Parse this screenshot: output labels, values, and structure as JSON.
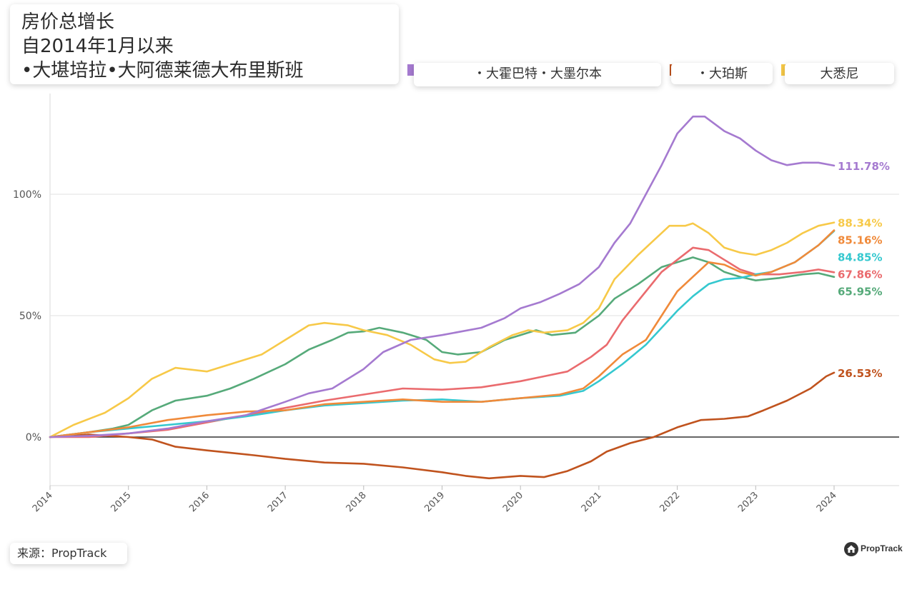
{
  "title_block": {
    "line1": "房价总增长",
    "line2": "自2014年1月以来",
    "line3": "•大堪培拉•大阿德莱德大布里斯班"
  },
  "legend": {
    "box_a": "・大霍巴特・大墨尔本",
    "box_b": "・大珀斯",
    "box_c": "大悉尼"
  },
  "source": "来源：PropTrack",
  "logo": {
    "name": "PropTrack",
    "icon": "house-icon"
  },
  "colors": {
    "purple": "#a57ad0",
    "yellow": "#f7c948",
    "orange": "#f08a3a",
    "cyan": "#35c8cf",
    "pink": "#ea6b6e",
    "green": "#56aa7a",
    "brown": "#c0531e"
  },
  "chart_data": {
    "type": "line",
    "xlabel": "",
    "ylabel": "",
    "xlim": [
      2014,
      2024.85
    ],
    "ylim": [
      -20,
      140
    ],
    "x_ticks": [
      "2014",
      "2015",
      "2016",
      "2017",
      "2018",
      "2019",
      "2020",
      "2021",
      "2022",
      "2023",
      "2024"
    ],
    "y_ticks": [
      {
        "value": 100,
        "label": "100%"
      },
      {
        "value": 50,
        "label": "50%"
      },
      {
        "value": 0,
        "label": "0%"
      }
    ],
    "grid": true,
    "series": [
      {
        "color": "purple",
        "end_label": "111.78%",
        "points": [
          [
            2014,
            0
          ],
          [
            2014.5,
            0.5
          ],
          [
            2015,
            1.5
          ],
          [
            2015.5,
            3.5
          ],
          [
            2016,
            6.5
          ],
          [
            2016.5,
            9
          ],
          [
            2017,
            14.5
          ],
          [
            2017.3,
            18
          ],
          [
            2017.6,
            20
          ],
          [
            2018,
            28
          ],
          [
            2018.25,
            35
          ],
          [
            2018.6,
            40
          ],
          [
            2019,
            42
          ],
          [
            2019.5,
            45
          ],
          [
            2019.8,
            49
          ],
          [
            2020,
            53
          ],
          [
            2020.25,
            55.5
          ],
          [
            2020.5,
            59
          ],
          [
            2020.75,
            63
          ],
          [
            2021,
            70
          ],
          [
            2021.2,
            80
          ],
          [
            2021.4,
            88
          ],
          [
            2021.6,
            100
          ],
          [
            2021.8,
            112
          ],
          [
            2022,
            125
          ],
          [
            2022.2,
            132
          ],
          [
            2022.35,
            132
          ],
          [
            2022.6,
            126
          ],
          [
            2022.8,
            123
          ],
          [
            2023,
            118
          ],
          [
            2023.2,
            114
          ],
          [
            2023.4,
            112
          ],
          [
            2023.6,
            113
          ],
          [
            2023.8,
            113
          ],
          [
            2024,
            111.78
          ]
        ]
      },
      {
        "color": "yellow",
        "end_label": "88.34%",
        "points": [
          [
            2014,
            0
          ],
          [
            2014.3,
            5
          ],
          [
            2014.7,
            10
          ],
          [
            2015,
            16
          ],
          [
            2015.3,
            24
          ],
          [
            2015.6,
            28.5
          ],
          [
            2016,
            27
          ],
          [
            2016.3,
            30
          ],
          [
            2016.7,
            34
          ],
          [
            2017,
            40
          ],
          [
            2017.3,
            46
          ],
          [
            2017.5,
            47
          ],
          [
            2017.8,
            46
          ],
          [
            2018,
            44
          ],
          [
            2018.3,
            42
          ],
          [
            2018.6,
            38
          ],
          [
            2018.9,
            32
          ],
          [
            2019.1,
            30.5
          ],
          [
            2019.3,
            31
          ],
          [
            2019.6,
            37
          ],
          [
            2019.9,
            42
          ],
          [
            2020.1,
            44
          ],
          [
            2020.3,
            43
          ],
          [
            2020.6,
            44
          ],
          [
            2020.8,
            47
          ],
          [
            2021,
            53
          ],
          [
            2021.2,
            65
          ],
          [
            2021.5,
            75
          ],
          [
            2021.7,
            81
          ],
          [
            2021.9,
            87
          ],
          [
            2022.1,
            87
          ],
          [
            2022.2,
            88
          ],
          [
            2022.4,
            84
          ],
          [
            2022.6,
            78
          ],
          [
            2022.8,
            76
          ],
          [
            2023,
            75
          ],
          [
            2023.2,
            77
          ],
          [
            2023.4,
            80
          ],
          [
            2023.6,
            84
          ],
          [
            2023.8,
            87
          ],
          [
            2024,
            88.34
          ]
        ]
      },
      {
        "color": "orange",
        "end_label": "85.16%",
        "points": [
          [
            2014,
            0
          ],
          [
            2014.5,
            2
          ],
          [
            2015,
            4
          ],
          [
            2015.5,
            7
          ],
          [
            2016,
            9
          ],
          [
            2016.5,
            10.5
          ],
          [
            2017,
            11
          ],
          [
            2017.5,
            13.5
          ],
          [
            2018,
            14.5
          ],
          [
            2018.5,
            15.5
          ],
          [
            2019,
            14.5
          ],
          [
            2019.5,
            14.5
          ],
          [
            2020,
            16
          ],
          [
            2020.5,
            17.5
          ],
          [
            2020.8,
            20
          ],
          [
            2021,
            25
          ],
          [
            2021.3,
            34
          ],
          [
            2021.6,
            40
          ],
          [
            2021.8,
            50
          ],
          [
            2022,
            60
          ],
          [
            2022.2,
            66
          ],
          [
            2022.4,
            72
          ],
          [
            2022.6,
            71
          ],
          [
            2022.8,
            68
          ],
          [
            2023,
            66.5
          ],
          [
            2023.2,
            68
          ],
          [
            2023.5,
            72
          ],
          [
            2023.8,
            79
          ],
          [
            2024,
            85.16
          ]
        ]
      },
      {
        "color": "cyan",
        "end_label": "84.85%",
        "points": [
          [
            2014,
            0
          ],
          [
            2014.5,
            2
          ],
          [
            2015,
            3.5
          ],
          [
            2015.5,
            5
          ],
          [
            2016,
            6.5
          ],
          [
            2016.5,
            8.5
          ],
          [
            2017,
            11
          ],
          [
            2017.5,
            13
          ],
          [
            2018,
            14
          ],
          [
            2018.5,
            15
          ],
          [
            2019,
            15.5
          ],
          [
            2019.5,
            14.5
          ],
          [
            2020,
            16
          ],
          [
            2020.5,
            17
          ],
          [
            2020.8,
            19
          ],
          [
            2021,
            23
          ],
          [
            2021.3,
            30
          ],
          [
            2021.6,
            38
          ],
          [
            2021.8,
            45
          ],
          [
            2022,
            52
          ],
          [
            2022.2,
            58
          ],
          [
            2022.4,
            63
          ],
          [
            2022.6,
            65
          ],
          [
            2022.8,
            65.5
          ],
          [
            2023,
            67
          ],
          [
            2023.2,
            68
          ],
          [
            2023.5,
            72
          ],
          [
            2023.8,
            79
          ],
          [
            2024,
            84.85
          ]
        ]
      },
      {
        "color": "pink",
        "end_label": "67.86%",
        "points": [
          [
            2014,
            0
          ],
          [
            2014.5,
            0
          ],
          [
            2015,
            1.5
          ],
          [
            2015.5,
            3
          ],
          [
            2016,
            6
          ],
          [
            2016.5,
            9
          ],
          [
            2017,
            12
          ],
          [
            2017.5,
            15
          ],
          [
            2018,
            17.5
          ],
          [
            2018.5,
            20
          ],
          [
            2019,
            19.5
          ],
          [
            2019.5,
            20.5
          ],
          [
            2020,
            23
          ],
          [
            2020.3,
            25
          ],
          [
            2020.6,
            27
          ],
          [
            2020.9,
            33
          ],
          [
            2021.1,
            38
          ],
          [
            2021.3,
            48
          ],
          [
            2021.6,
            60
          ],
          [
            2021.8,
            68
          ],
          [
            2022,
            73
          ],
          [
            2022.2,
            78
          ],
          [
            2022.4,
            77
          ],
          [
            2022.6,
            73
          ],
          [
            2022.8,
            69
          ],
          [
            2023,
            67
          ],
          [
            2023.3,
            67
          ],
          [
            2023.6,
            68
          ],
          [
            2023.8,
            69
          ],
          [
            2024,
            67.86
          ]
        ]
      },
      {
        "color": "green",
        "end_label": "65.95%",
        "points": [
          [
            2014,
            0
          ],
          [
            2014.5,
            2
          ],
          [
            2014.8,
            3.5
          ],
          [
            2015,
            5
          ],
          [
            2015.3,
            11
          ],
          [
            2015.6,
            15
          ],
          [
            2016,
            17
          ],
          [
            2016.3,
            20
          ],
          [
            2016.6,
            24
          ],
          [
            2017,
            30
          ],
          [
            2017.3,
            36
          ],
          [
            2017.6,
            40
          ],
          [
            2017.8,
            43
          ],
          [
            2018,
            43.5
          ],
          [
            2018.2,
            45
          ],
          [
            2018.5,
            43
          ],
          [
            2018.8,
            40
          ],
          [
            2019,
            35
          ],
          [
            2019.2,
            34
          ],
          [
            2019.5,
            35
          ],
          [
            2019.8,
            40
          ],
          [
            2020,
            42
          ],
          [
            2020.2,
            44
          ],
          [
            2020.4,
            42
          ],
          [
            2020.7,
            43
          ],
          [
            2021,
            50
          ],
          [
            2021.2,
            57
          ],
          [
            2021.5,
            63
          ],
          [
            2021.8,
            70
          ],
          [
            2022,
            72
          ],
          [
            2022.2,
            74
          ],
          [
            2022.4,
            72
          ],
          [
            2022.6,
            68
          ],
          [
            2022.8,
            66
          ],
          [
            2023,
            64.5
          ],
          [
            2023.3,
            65.5
          ],
          [
            2023.6,
            67
          ],
          [
            2023.8,
            67.5
          ],
          [
            2024,
            65.95
          ]
        ]
      },
      {
        "color": "brown",
        "end_label": "26.53%",
        "points": [
          [
            2014,
            0
          ],
          [
            2014.5,
            1
          ],
          [
            2015,
            0
          ],
          [
            2015.3,
            -1
          ],
          [
            2015.6,
            -4
          ],
          [
            2016,
            -5.5
          ],
          [
            2016.3,
            -6.5
          ],
          [
            2016.6,
            -7.5
          ],
          [
            2017,
            -9
          ],
          [
            2017.5,
            -10.5
          ],
          [
            2018,
            -11
          ],
          [
            2018.5,
            -12.5
          ],
          [
            2019,
            -14.5
          ],
          [
            2019.3,
            -16
          ],
          [
            2019.6,
            -17
          ],
          [
            2020,
            -16
          ],
          [
            2020.3,
            -16.5
          ],
          [
            2020.6,
            -14
          ],
          [
            2020.9,
            -10
          ],
          [
            2021.1,
            -6
          ],
          [
            2021.4,
            -2.5
          ],
          [
            2021.7,
            0
          ],
          [
            2022,
            4
          ],
          [
            2022.3,
            7
          ],
          [
            2022.6,
            7.5
          ],
          [
            2022.9,
            8.5
          ],
          [
            2023.1,
            11
          ],
          [
            2023.4,
            15
          ],
          [
            2023.7,
            20
          ],
          [
            2023.9,
            25
          ],
          [
            2024,
            26.53
          ]
        ]
      }
    ]
  }
}
